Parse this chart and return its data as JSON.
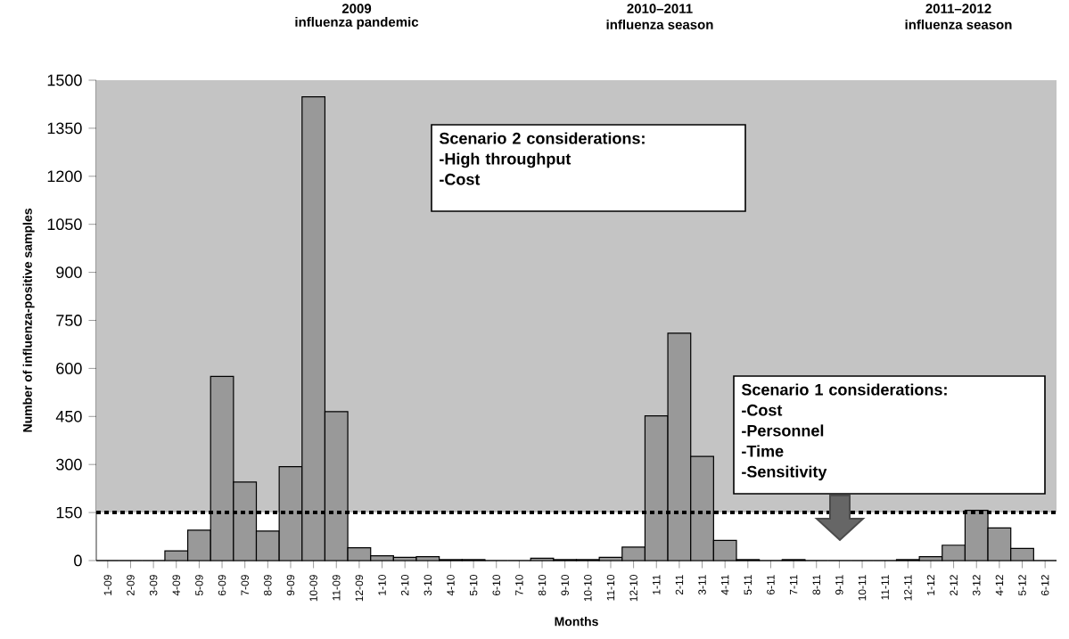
{
  "chart_data": {
    "type": "bar",
    "xlabel": "Months",
    "ylabel": "Number of influenza-positive samples",
    "categories": [
      "1-09",
      "2-09",
      "3-09",
      "4-09",
      "5-09",
      "6-09",
      "7-09",
      "8-09",
      "9-09",
      "10-09",
      "11-09",
      "12-09",
      "1-10",
      "2-10",
      "3-10",
      "4-10",
      "5-10",
      "6-10",
      "7-10",
      "8-10",
      "9-10",
      "10-10",
      "11-10",
      "12-10",
      "1-11",
      "2-11",
      "3-11",
      "4-11",
      "5-11",
      "6-11",
      "7-11",
      "8-11",
      "9-11",
      "10-11",
      "11-11",
      "12-11",
      "1-12",
      "2-12",
      "3-12",
      "4-12",
      "5-12",
      "6-12"
    ],
    "values": [
      0,
      0,
      0,
      30,
      95,
      575,
      245,
      92,
      293,
      1448,
      465,
      40,
      15,
      10,
      12,
      3,
      3,
      0,
      0,
      7,
      3,
      3,
      10,
      42,
      452,
      710,
      325,
      63,
      3,
      0,
      3,
      0,
      0,
      0,
      0,
      3,
      12,
      48,
      157,
      102,
      38,
      0
    ],
    "color": "#999999",
    "ylim": [
      0,
      1500
    ],
    "yticks": [
      0,
      150,
      300,
      450,
      600,
      750,
      900,
      1050,
      1200,
      1350,
      1500
    ],
    "ref_lines": [
      {
        "axis": "y",
        "value": 150,
        "line_style": "dotted",
        "color": "#000000"
      }
    ],
    "bands": [
      {
        "axis": "y",
        "from": 150,
        "to": 1500,
        "color": "#c4c4c4"
      }
    ],
    "annotations": [
      "2009",
      "influenza pandemic",
      "2010–2011",
      "influenza season",
      "2011–2012",
      "influenza season",
      "Scenario 2 considerations:",
      "-High throughput",
      "-Cost",
      "Scenario 1 considerations:",
      "-Cost",
      "-Personnel",
      "-Time",
      "-Sensitivity"
    ]
  }
}
